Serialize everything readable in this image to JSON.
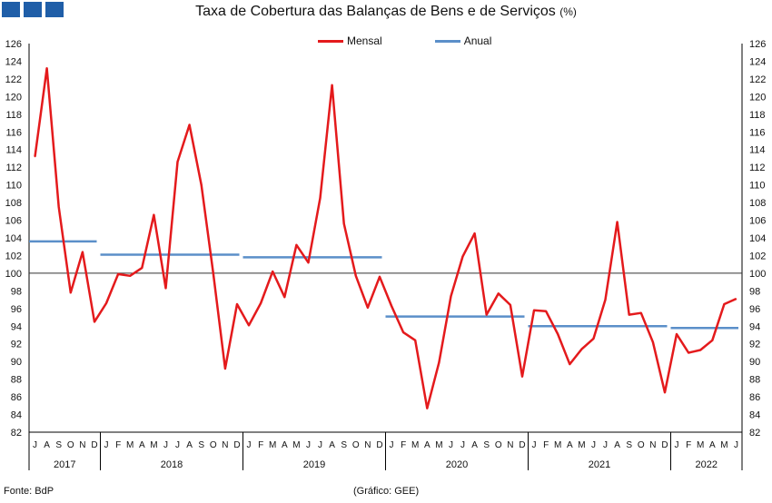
{
  "title": "Taxa de Cobertura das Balanças de Bens e de Serviços",
  "title_unit": "(%)",
  "source": "Fonte: BdP",
  "credit": "(Gráfico: GEE)",
  "colors": {
    "mensal": "#e41a1c",
    "anual": "#5b8fc9",
    "logo": "#1f5ea8"
  },
  "chart_data": {
    "type": "line",
    "title": "Taxa de Cobertura das Balanças de Bens e de Serviços (%)",
    "ylim": [
      82,
      126
    ],
    "yticks": [
      82,
      84,
      86,
      88,
      90,
      92,
      94,
      96,
      98,
      100,
      102,
      104,
      106,
      108,
      110,
      112,
      114,
      116,
      118,
      120,
      122,
      124,
      126
    ],
    "reference_line": 100,
    "legend_position": "top-center",
    "month_labels": [
      "J",
      "A",
      "S",
      "O",
      "N",
      "D",
      "J",
      "F",
      "M",
      "A",
      "M",
      "J",
      "J",
      "A",
      "S",
      "O",
      "N",
      "D",
      "J",
      "F",
      "M",
      "A",
      "M",
      "J",
      "J",
      "A",
      "S",
      "O",
      "N",
      "D",
      "J",
      "F",
      "M",
      "A",
      "M",
      "J",
      "J",
      "A",
      "S",
      "O",
      "N",
      "D",
      "J",
      "F",
      "M",
      "A",
      "M",
      "J",
      "J",
      "A",
      "S",
      "O",
      "N",
      "D",
      "J",
      "F",
      "M",
      "A",
      "M",
      "J"
    ],
    "years": [
      {
        "label": "2017",
        "start": 0,
        "end": 5
      },
      {
        "label": "2018",
        "start": 6,
        "end": 17
      },
      {
        "label": "2019",
        "start": 18,
        "end": 29
      },
      {
        "label": "2020",
        "start": 30,
        "end": 41
      },
      {
        "label": "2021",
        "start": 42,
        "end": 53
      },
      {
        "label": "2022",
        "start": 54,
        "end": 59
      }
    ],
    "series": [
      {
        "name": "Mensal",
        "values": [
          113.2,
          123.2,
          107.5,
          97.8,
          102.4,
          94.5,
          96.6,
          99.9,
          99.7,
          100.6,
          106.6,
          98.3,
          112.6,
          116.8,
          110.0,
          100.0,
          89.2,
          96.5,
          94.1,
          96.6,
          100.2,
          97.3,
          103.2,
          101.2,
          108.5,
          121.3,
          105.6,
          99.7,
          96.1,
          99.6,
          96.3,
          93.3,
          92.4,
          84.7,
          89.9,
          97.4,
          101.9,
          104.5,
          95.3,
          97.7,
          96.4,
          88.3,
          95.8,
          95.7,
          93.1,
          89.7,
          91.4,
          92.6,
          97.0,
          105.8,
          95.3,
          95.5,
          92.2,
          86.5,
          93.1,
          91.0,
          91.3,
          92.4,
          96.5,
          97.1
        ]
      },
      {
        "name": "Anual",
        "segments": [
          {
            "start": 0,
            "end": 5,
            "value": 103.6
          },
          {
            "start": 6,
            "end": 17,
            "value": 102.1
          },
          {
            "start": 18,
            "end": 29,
            "value": 101.8
          },
          {
            "start": 30,
            "end": 41,
            "value": 95.1
          },
          {
            "start": 42,
            "end": 53,
            "value": 94.0
          },
          {
            "start": 54,
            "end": 59,
            "value": 93.8
          }
        ]
      }
    ]
  }
}
